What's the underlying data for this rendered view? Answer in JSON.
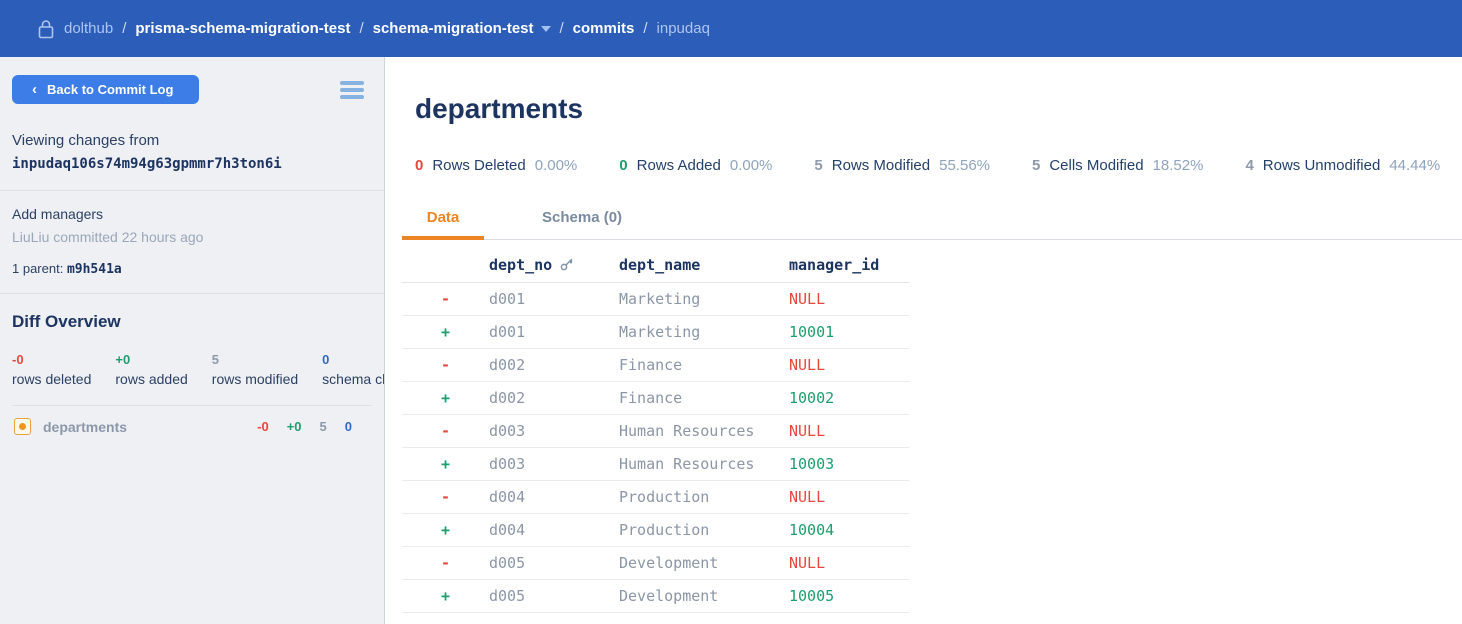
{
  "nav": {
    "breadcrumb": [
      {
        "label": "dolthub"
      },
      {
        "label": "prisma-schema-migration-test"
      },
      {
        "label": "schema-migration-test"
      },
      {
        "label": "commits"
      },
      {
        "label": "inpudaq"
      }
    ],
    "separator": "/"
  },
  "sidebar": {
    "back_button_label": "Back to Commit Log",
    "back_chevron": "‹",
    "viewing_changes_label": "Viewing changes from",
    "commit_hash": "inpudaq106s74m94g63gpmmr7h3ton6i",
    "commit_message": "Add managers",
    "commit_meta": "LiuLiu committed 22 hours ago",
    "parent_label": "1 parent: ",
    "parent_hash": "m9h541a",
    "diff_overview_title": "Diff Overview",
    "stats": [
      {
        "value": "-0",
        "label": "rows deleted",
        "color": "red"
      },
      {
        "value": "+0",
        "label": "rows added",
        "color": "green"
      },
      {
        "value": "5",
        "label": "rows modified",
        "color": "gray"
      },
      {
        "value": "0",
        "label": "schema changes",
        "color": "blue"
      }
    ],
    "tables": [
      {
        "name": "departments",
        "deleted": "-0",
        "added": "+0",
        "modified": "5",
        "schema": "0"
      }
    ]
  },
  "main": {
    "title": "departments",
    "stats": [
      {
        "value": "0",
        "label": "Rows Deleted",
        "pct": "0.00%",
        "color": "red"
      },
      {
        "value": "0",
        "label": "Rows Added",
        "pct": "0.00%",
        "color": "green"
      },
      {
        "value": "5",
        "label": "Rows Modified",
        "pct": "55.56%",
        "color": "gray"
      },
      {
        "value": "5",
        "label": "Cells Modified",
        "pct": "18.52%",
        "color": "gray"
      },
      {
        "value": "4",
        "label": "Rows Unmodified",
        "pct": "44.44%",
        "color": "gray"
      }
    ],
    "tabs": [
      {
        "label": "Data",
        "active": true
      },
      {
        "label": "Schema (0)",
        "active": false
      }
    ],
    "table": {
      "columns": [
        "dept_no",
        "dept_name",
        "manager_id"
      ],
      "rows": [
        {
          "sign": "-",
          "dept_no": "d001",
          "dept_name": "Marketing",
          "manager_id": "NULL",
          "type": "removed"
        },
        {
          "sign": "+",
          "dept_no": "d001",
          "dept_name": "Marketing",
          "manager_id": "10001",
          "type": "added"
        },
        {
          "sign": "-",
          "dept_no": "d002",
          "dept_name": "Finance",
          "manager_id": "NULL",
          "type": "removed"
        },
        {
          "sign": "+",
          "dept_no": "d002",
          "dept_name": "Finance",
          "manager_id": "10002",
          "type": "added"
        },
        {
          "sign": "-",
          "dept_no": "d003",
          "dept_name": "Human Resources",
          "manager_id": "NULL",
          "type": "removed"
        },
        {
          "sign": "+",
          "dept_no": "d003",
          "dept_name": "Human Resources",
          "manager_id": "10003",
          "type": "added"
        },
        {
          "sign": "-",
          "dept_no": "d004",
          "dept_name": "Production",
          "manager_id": "NULL",
          "type": "removed"
        },
        {
          "sign": "+",
          "dept_no": "d004",
          "dept_name": "Production",
          "manager_id": "10004",
          "type": "added"
        },
        {
          "sign": "-",
          "dept_no": "d005",
          "dept_name": "Development",
          "manager_id": "NULL",
          "type": "removed"
        },
        {
          "sign": "+",
          "dept_no": "d005",
          "dept_name": "Development",
          "manager_id": "10005",
          "type": "added"
        }
      ]
    }
  },
  "colors": {
    "nav_bg": "#2b5db9",
    "accent_orange": "#ee8522",
    "removed_red": "#e5493d",
    "added_green": "#1d9e6e",
    "schema_blue": "#2f6bc4",
    "navy_text": "#1d3461",
    "muted_gray": "#8b96a6",
    "button_blue": "#3d7de8"
  }
}
